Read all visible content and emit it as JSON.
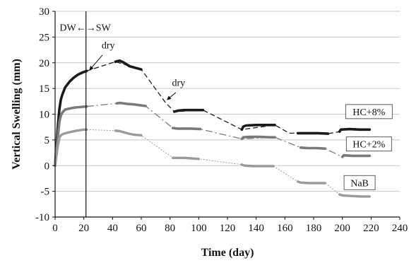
{
  "chart_data": {
    "type": "line",
    "title": "",
    "xlabel": "Time (day)",
    "ylabel": "Vertical Swelling (mm)",
    "xlim": [
      0,
      240
    ],
    "ylim": [
      -10,
      30
    ],
    "xticks": [
      0,
      20,
      40,
      60,
      80,
      100,
      120,
      140,
      160,
      180,
      200,
      220,
      240
    ],
    "yticks": [
      -10,
      -5,
      0,
      5,
      10,
      15,
      20,
      25,
      30
    ],
    "x_tick_labels": [
      "0",
      "20",
      "40",
      "60",
      "80",
      "100",
      "120",
      "140",
      "160",
      "180",
      "200",
      "220",
      "240"
    ],
    "y_tick_labels": [
      "-10",
      "-5",
      "0",
      "5",
      "10",
      "15",
      "20",
      "25",
      "30"
    ],
    "grid": "horizontal",
    "vertical_marker": {
      "x": 21.5,
      "left_label": "DW",
      "arrow": "←→",
      "right_label": "SW"
    },
    "annotations": [
      {
        "text": "dry",
        "x": 37,
        "y": 22.8
      },
      {
        "text": "dry",
        "x": 86,
        "y": 15.5
      }
    ],
    "series": [
      {
        "name": "HC+8%",
        "color": "#1a1a1a",
        "measured": [
          [
            [
              0,
              0
            ],
            [
              1,
              4
            ],
            [
              2,
              8
            ],
            [
              3,
              11
            ],
            [
              4,
              12.8
            ],
            [
              5,
              13.8
            ],
            [
              7,
              15.2
            ],
            [
              10,
              16.3
            ],
            [
              13,
              17.1
            ],
            [
              16,
              17.7
            ],
            [
              19,
              18.1
            ],
            [
              22,
              18.4
            ]
          ],
          [
            [
              42,
              20.2
            ],
            [
              45,
              20.4
            ],
            [
              48,
              20.0
            ],
            [
              52,
              19.3
            ],
            [
              56,
              19.0
            ],
            [
              60,
              18.7
            ]
          ],
          [
            [
              83,
              10.5
            ],
            [
              86,
              10.7
            ],
            [
              90,
              10.8
            ],
            [
              95,
              10.8
            ],
            [
              100,
              10.8
            ],
            [
              103,
              10.8
            ]
          ],
          [
            [
              130,
              7.0
            ],
            [
              131,
              7.6
            ],
            [
              133,
              7.8
            ],
            [
              140,
              7.9
            ],
            [
              148,
              7.9
            ],
            [
              153,
              7.9
            ]
          ],
          [
            [
              169,
              6.3
            ],
            [
              175,
              6.3
            ],
            [
              183,
              6.3
            ],
            [
              190,
              6.2
            ]
          ],
          [
            [
              198,
              6.6
            ],
            [
              199,
              7.0
            ],
            [
              205,
              7.1
            ],
            [
              212,
              7.0
            ],
            [
              219,
              7.0
            ]
          ]
        ],
        "trend": [
          [
            22,
            18.4
          ],
          [
            42,
            20.2
          ],
          [
            60,
            18.7
          ],
          [
            77,
            12.2
          ],
          [
            83,
            10.5
          ],
          [
            103,
            10.8
          ],
          [
            130,
            7.0
          ],
          [
            153,
            7.9
          ],
          [
            163,
            6.3
          ],
          [
            169,
            6.3
          ],
          [
            190,
            6.2
          ],
          [
            198,
            6.6
          ]
        ]
      },
      {
        "name": "HC+2%",
        "color": "#7a7a7a",
        "measured": [
          [
            [
              0,
              0
            ],
            [
              1,
              3
            ],
            [
              2,
              6
            ],
            [
              3,
              8.5
            ],
            [
              4,
              9.7
            ],
            [
              5,
              10.3
            ],
            [
              7,
              10.9
            ],
            [
              10,
              11.1
            ],
            [
              14,
              11.3
            ],
            [
              18,
              11.4
            ],
            [
              22,
              11.5
            ]
          ],
          [
            [
              43,
              12.1
            ],
            [
              45,
              12.2
            ],
            [
              50,
              12.0
            ],
            [
              55,
              11.9
            ],
            [
              60,
              11.7
            ],
            [
              63,
              11.6
            ]
          ],
          [
            [
              82,
              7.3
            ],
            [
              85,
              7.2
            ],
            [
              90,
              7.2
            ],
            [
              95,
              7.2
            ],
            [
              101,
              7.1
            ]
          ],
          [
            [
              130,
              5.2
            ],
            [
              131,
              5.5
            ],
            [
              135,
              5.6
            ],
            [
              142,
              5.6
            ],
            [
              150,
              5.5
            ],
            [
              153,
              5.5
            ]
          ],
          [
            [
              171,
              3.5
            ],
            [
              176,
              3.4
            ],
            [
              182,
              3.4
            ],
            [
              188,
              3.3
            ]
          ],
          [
            [
              200,
              1.7
            ],
            [
              201,
              2.0
            ],
            [
              207,
              1.9
            ],
            [
              214,
              1.9
            ],
            [
              219,
              1.9
            ]
          ]
        ],
        "trend": [
          [
            22,
            11.5
          ],
          [
            43,
            12.1
          ],
          [
            63,
            11.6
          ],
          [
            82,
            7.3
          ],
          [
            101,
            7.1
          ],
          [
            130,
            5.2
          ],
          [
            153,
            5.5
          ],
          [
            171,
            3.5
          ],
          [
            188,
            3.3
          ],
          [
            200,
            1.7
          ]
        ]
      },
      {
        "name": "NaB",
        "color": "#9a9a9a",
        "measured": [
          [
            [
              0,
              0
            ],
            [
              1,
              2
            ],
            [
              2,
              4
            ],
            [
              3,
              5.4
            ],
            [
              4,
              5.9
            ],
            [
              6,
              6.2
            ],
            [
              10,
              6.5
            ],
            [
              15,
              6.8
            ],
            [
              20,
              7.0
            ],
            [
              22,
              7.0
            ]
          ],
          [
            [
              42,
              6.8
            ],
            [
              45,
              6.7
            ],
            [
              50,
              6.3
            ],
            [
              55,
              6.0
            ],
            [
              60,
              5.9
            ]
          ],
          [
            [
              82,
              1.5
            ],
            [
              85,
              1.5
            ],
            [
              90,
              1.5
            ],
            [
              95,
              1.4
            ],
            [
              100,
              1.3
            ]
          ],
          [
            [
              130,
              0.2
            ],
            [
              132,
              0.0
            ],
            [
              138,
              -0.1
            ],
            [
              145,
              -0.1
            ],
            [
              152,
              -0.1
            ]
          ],
          [
            [
              169,
              -3.1
            ],
            [
              171,
              -3.3
            ],
            [
              177,
              -3.4
            ],
            [
              183,
              -3.4
            ],
            [
              188,
              -3.4
            ]
          ],
          [
            [
              198,
              -5.6
            ],
            [
              200,
              -5.8
            ],
            [
              206,
              -5.9
            ],
            [
              213,
              -6.0
            ],
            [
              219,
              -6.0
            ]
          ]
        ],
        "trend": [
          [
            22,
            7.0
          ],
          [
            42,
            6.8
          ],
          [
            60,
            5.9
          ],
          [
            82,
            1.5
          ],
          [
            100,
            1.3
          ],
          [
            130,
            0.2
          ],
          [
            152,
            -0.1
          ],
          [
            169,
            -3.1
          ],
          [
            188,
            -3.4
          ],
          [
            198,
            -5.6
          ]
        ]
      }
    ],
    "series_labels": [
      {
        "text": "HC+8%",
        "series": "HC+8%"
      },
      {
        "text": "HC+2%",
        "series": "HC+2%"
      },
      {
        "text": "NaB",
        "series": "NaB"
      }
    ]
  }
}
